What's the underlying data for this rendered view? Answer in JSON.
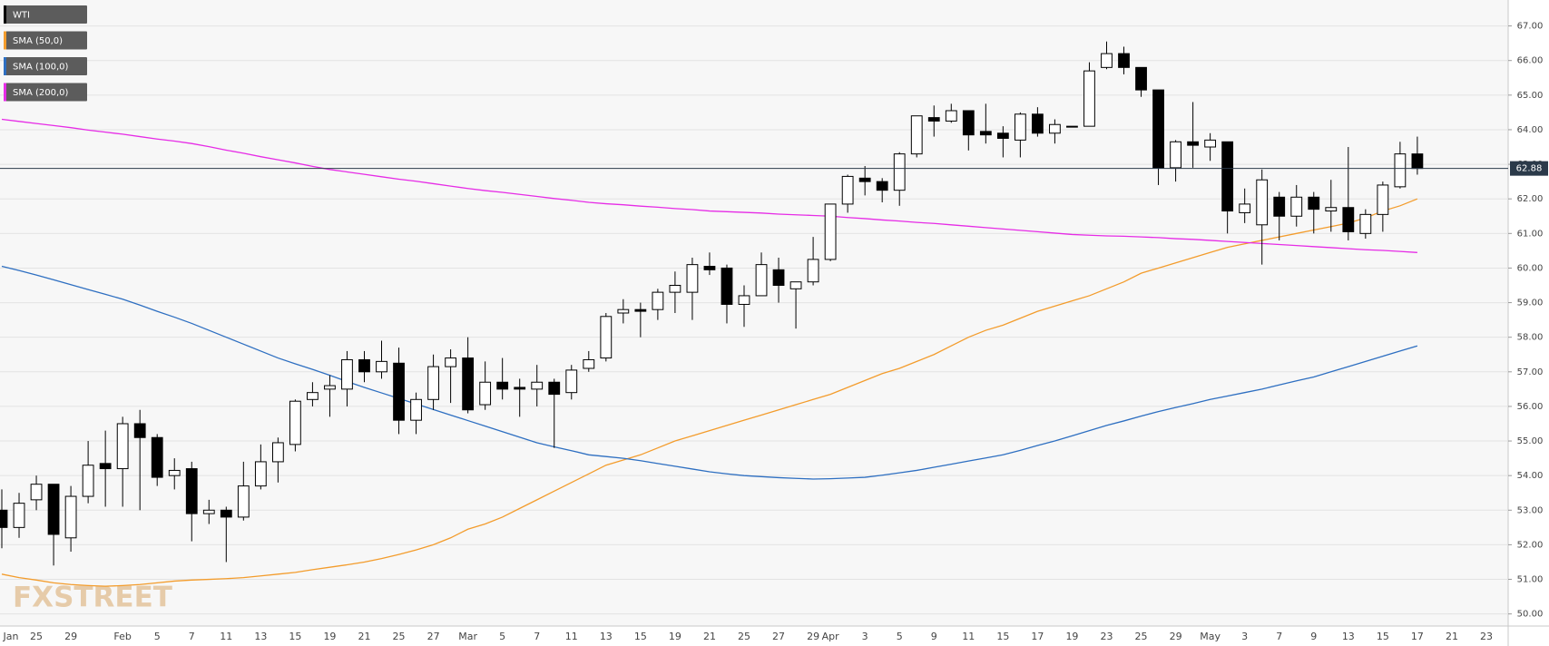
{
  "chart_data": {
    "type": "candlestick",
    "watermark": "FXSTREET",
    "categories": [
      "Jan",
      null,
      "25",
      null,
      "29",
      null,
      null,
      "Feb",
      null,
      "5",
      null,
      "7",
      null,
      "11",
      null,
      "13",
      null,
      "15",
      null,
      "19",
      null,
      "21",
      null,
      "25",
      null,
      "27",
      null,
      "Mar",
      null,
      "5",
      null,
      "7",
      null,
      "11",
      null,
      "13",
      null,
      "15",
      null,
      "19",
      null,
      "21",
      null,
      "25",
      null,
      "27",
      null,
      "29",
      "Apr",
      null,
      "3",
      null,
      "5",
      null,
      "9",
      null,
      "11",
      null,
      "15",
      null,
      "17",
      null,
      "19",
      null,
      "23",
      null,
      "25",
      null,
      "29",
      null,
      "May",
      null,
      "3",
      null,
      "7",
      null,
      "9",
      null,
      "13",
      null,
      "15",
      null,
      "17",
      null,
      "21",
      null,
      "23"
    ],
    "series": [
      {
        "name": "WTI",
        "type": "candlestick",
        "color": "#000000",
        "open": [
          53.0,
          52.5,
          53.3,
          53.75,
          52.2,
          53.4,
          54.35,
          54.2,
          55.5,
          55.1,
          54.0,
          54.2,
          52.9,
          53.0,
          52.8,
          53.7,
          54.4,
          54.9,
          56.2,
          56.5,
          56.5,
          57.35,
          57.0,
          57.25,
          55.6,
          56.2,
          57.15,
          57.4,
          56.05,
          56.7,
          56.55,
          56.5,
          56.7,
          56.4,
          57.1,
          57.4,
          58.7,
          58.8,
          58.8,
          59.3,
          59.3,
          60.05,
          60.0,
          58.95,
          59.2,
          59.95,
          59.4,
          59.6,
          60.25,
          61.85,
          62.6,
          62.5,
          62.25,
          63.3,
          64.35,
          64.25,
          64.55,
          63.95,
          63.9,
          63.7,
          64.45,
          63.9,
          64.1,
          64.1,
          65.8,
          66.2,
          65.8,
          65.15,
          62.9,
          63.65,
          63.5,
          63.65,
          61.6,
          61.25,
          62.05,
          61.5,
          62.05,
          61.65,
          61.75,
          61.0,
          61.55,
          62.35,
          63.3,
          null,
          null,
          null,
          null
        ],
        "high": [
          53.6,
          53.5,
          54.0,
          53.75,
          53.7,
          55.0,
          55.3,
          55.7,
          55.9,
          55.2,
          54.5,
          54.4,
          53.3,
          53.1,
          54.4,
          54.9,
          55.1,
          56.2,
          56.7,
          56.9,
          57.6,
          57.6,
          57.9,
          57.7,
          56.4,
          57.5,
          57.65,
          58.0,
          57.3,
          57.4,
          56.8,
          57.2,
          56.8,
          57.2,
          57.6,
          58.7,
          59.1,
          59.0,
          59.4,
          59.9,
          60.3,
          60.45,
          60.1,
          59.5,
          60.45,
          60.3,
          59.6,
          60.9,
          61.85,
          62.7,
          62.95,
          62.6,
          63.35,
          64.4,
          64.7,
          64.75,
          64.55,
          64.75,
          64.1,
          64.5,
          64.65,
          64.3,
          64.1,
          65.95,
          66.55,
          66.4,
          65.8,
          65.15,
          63.7,
          64.8,
          63.9,
          63.65,
          62.3,
          62.85,
          62.2,
          62.4,
          62.2,
          62.55,
          63.5,
          61.7,
          62.5,
          63.65,
          63.8,
          null,
          null,
          null,
          null
        ],
        "low": [
          51.9,
          52.2,
          53.0,
          51.4,
          51.8,
          53.2,
          53.1,
          53.1,
          53.0,
          53.7,
          53.6,
          52.1,
          52.6,
          51.5,
          52.7,
          53.6,
          53.8,
          54.7,
          56.0,
          55.7,
          56.0,
          56.7,
          56.8,
          55.2,
          55.2,
          55.9,
          56.1,
          55.8,
          55.9,
          56.2,
          55.7,
          56.0,
          54.8,
          56.2,
          57.0,
          57.3,
          58.4,
          58.0,
          58.5,
          58.7,
          58.5,
          59.8,
          58.4,
          58.3,
          59.2,
          59.0,
          58.25,
          59.5,
          60.2,
          61.6,
          62.1,
          61.9,
          61.8,
          63.2,
          63.8,
          64.2,
          63.4,
          63.6,
          63.2,
          63.2,
          63.8,
          63.6,
          64.1,
          64.1,
          65.75,
          65.6,
          64.95,
          62.4,
          62.5,
          62.9,
          63.1,
          61.0,
          61.3,
          60.1,
          60.8,
          61.2,
          61.0,
          61.05,
          60.8,
          60.85,
          61.05,
          62.3,
          62.7,
          null,
          null,
          null,
          null
        ],
        "close": [
          52.5,
          53.2,
          53.75,
          52.3,
          53.4,
          54.3,
          54.2,
          55.5,
          55.1,
          53.95,
          54.15,
          52.9,
          53.0,
          52.8,
          53.7,
          54.4,
          54.95,
          56.15,
          56.4,
          56.6,
          57.35,
          57.0,
          57.3,
          55.6,
          56.2,
          57.15,
          57.4,
          55.9,
          56.7,
          56.5,
          56.5,
          56.7,
          56.35,
          57.05,
          57.35,
          58.6,
          58.8,
          58.75,
          59.3,
          59.5,
          60.1,
          59.95,
          58.95,
          59.2,
          60.1,
          59.5,
          59.6,
          60.25,
          61.85,
          62.65,
          62.5,
          62.25,
          63.3,
          64.4,
          64.25,
          64.55,
          63.85,
          63.85,
          63.75,
          64.45,
          63.9,
          64.15,
          64.1,
          65.7,
          66.2,
          65.8,
          65.15,
          62.9,
          63.65,
          63.55,
          63.7,
          61.65,
          61.85,
          62.55,
          61.5,
          62.05,
          61.7,
          61.75,
          61.05,
          61.55,
          62.4,
          63.3,
          62.88,
          null,
          null,
          null,
          null
        ]
      },
      {
        "name": "SMA (50,0)",
        "type": "line",
        "color": "#f39c2c",
        "values": [
          51.15,
          51.05,
          50.98,
          50.9,
          50.85,
          50.82,
          50.8,
          50.82,
          50.85,
          50.9,
          50.95,
          50.98,
          51.0,
          51.02,
          51.05,
          51.1,
          51.15,
          51.2,
          51.28,
          51.35,
          51.42,
          51.5,
          51.6,
          51.72,
          51.85,
          52.0,
          52.2,
          52.45,
          52.6,
          52.8,
          53.05,
          53.3,
          53.55,
          53.8,
          54.05,
          54.3,
          54.45,
          54.6,
          54.8,
          55.0,
          55.15,
          55.3,
          55.45,
          55.6,
          55.75,
          55.9,
          56.05,
          56.2,
          56.35,
          56.55,
          56.75,
          56.95,
          57.1,
          57.3,
          57.5,
          57.75,
          58.0,
          58.2,
          58.35,
          58.55,
          58.75,
          58.9,
          59.05,
          59.2,
          59.4,
          59.6,
          59.85,
          60.0,
          60.15,
          60.3,
          60.45,
          60.6,
          60.7,
          60.8,
          60.9,
          61.0,
          61.1,
          61.2,
          61.3,
          61.45,
          61.65,
          61.8,
          62.0,
          null,
          null,
          null,
          null
        ]
      },
      {
        "name": "SMA (100,0)",
        "type": "line",
        "color": "#2e6fc1",
        "values": [
          60.05,
          59.93,
          59.8,
          59.66,
          59.52,
          59.38,
          59.24,
          59.1,
          58.93,
          58.75,
          58.58,
          58.4,
          58.2,
          58.0,
          57.8,
          57.6,
          57.4,
          57.23,
          57.07,
          56.9,
          56.72,
          56.55,
          56.39,
          56.23,
          56.07,
          55.91,
          55.75,
          55.59,
          55.43,
          55.27,
          55.11,
          54.95,
          54.83,
          54.72,
          54.6,
          54.55,
          54.5,
          54.43,
          54.35,
          54.27,
          54.19,
          54.11,
          54.05,
          54.0,
          53.97,
          53.94,
          53.92,
          53.9,
          53.91,
          53.93,
          53.95,
          54.01,
          54.08,
          54.15,
          54.24,
          54.33,
          54.42,
          54.51,
          54.6,
          54.73,
          54.87,
          55.0,
          55.15,
          55.3,
          55.45,
          55.58,
          55.72,
          55.85,
          55.97,
          56.08,
          56.2,
          56.3,
          56.4,
          56.5,
          56.62,
          56.74,
          56.85,
          57.0,
          57.15,
          57.3,
          57.45,
          57.6,
          57.75,
          null,
          null,
          null,
          null
        ]
      },
      {
        "name": "SMA (200,0)",
        "type": "line",
        "color": "#e62ce6",
        "values": [
          64.3,
          64.24,
          64.18,
          64.12,
          64.06,
          63.99,
          63.93,
          63.87,
          63.8,
          63.73,
          63.67,
          63.6,
          63.51,
          63.41,
          63.32,
          63.22,
          63.13,
          63.04,
          62.94,
          62.85,
          62.78,
          62.71,
          62.64,
          62.57,
          62.51,
          62.44,
          62.37,
          62.3,
          62.24,
          62.19,
          62.13,
          62.07,
          62.01,
          61.96,
          61.9,
          61.86,
          61.83,
          61.79,
          61.76,
          61.72,
          61.69,
          61.65,
          61.63,
          61.61,
          61.59,
          61.56,
          61.54,
          61.52,
          61.5,
          61.46,
          61.43,
          61.39,
          61.36,
          61.32,
          61.29,
          61.25,
          61.21,
          61.17,
          61.13,
          61.09,
          61.05,
          61.01,
          60.97,
          60.95,
          60.93,
          60.92,
          60.9,
          60.88,
          60.85,
          60.83,
          60.8,
          60.77,
          60.74,
          60.71,
          60.68,
          60.65,
          60.62,
          60.59,
          60.56,
          60.53,
          60.51,
          60.48,
          60.45,
          null,
          null,
          null,
          null
        ]
      }
    ],
    "last_price": 62.88,
    "ylim": [
      49.65,
      67.75
    ],
    "yticks": [
      {
        "value": 50,
        "label": "50.00"
      },
      {
        "value": 51,
        "label": "51.00"
      },
      {
        "value": 52,
        "label": "52.00"
      },
      {
        "value": 53,
        "label": "53.00"
      },
      {
        "value": 54,
        "label": "54.00"
      },
      {
        "value": 55,
        "label": "55.00"
      },
      {
        "value": 56,
        "label": "56.00"
      },
      {
        "value": 57,
        "label": "57.00"
      },
      {
        "value": 58,
        "label": "58.00"
      },
      {
        "value": 59,
        "label": "59.00"
      },
      {
        "value": 60,
        "label": "60.00"
      },
      {
        "value": 61,
        "label": "61.00"
      },
      {
        "value": 62,
        "label": "62.00"
      },
      {
        "value": 63,
        "label": "63.00"
      },
      {
        "value": 64,
        "label": "64.00"
      },
      {
        "value": 65,
        "label": "65.00"
      },
      {
        "value": 66,
        "label": "66.00"
      },
      {
        "value": 67,
        "label": "67.00"
      }
    ],
    "grid": true
  }
}
